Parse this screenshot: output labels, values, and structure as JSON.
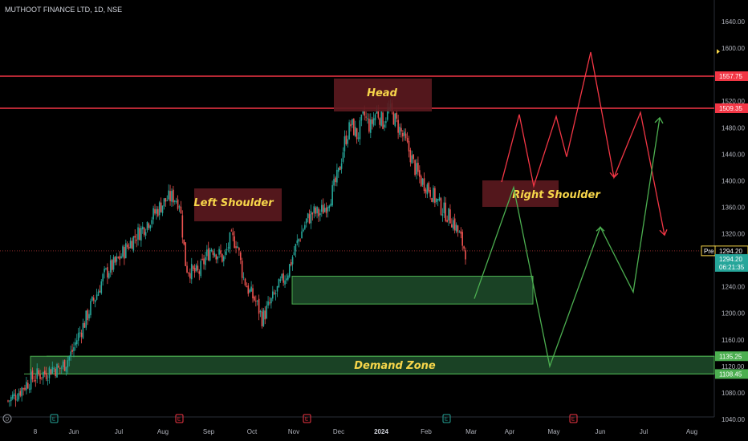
{
  "header": {
    "symbol_text": "MUTHOOT FINANCE LTD, 1D, NSE"
  },
  "colors": {
    "background": "#000000",
    "up_candle": "#26a69a",
    "down_candle": "#ef5350",
    "resistance_line": "#f23645",
    "zone_fill": "#1e4d2b",
    "zone_border": "#4caf50",
    "label_box": "#5c1a1f",
    "annotation_text": "#f7d64a",
    "projection_red": "#f23645",
    "projection_green": "#4caf50"
  },
  "chart_data": {
    "type": "candlestick",
    "title": "MUTHOOT FINANCE LTD, 1D, NSE",
    "ylim": [
      1030,
      1660
    ],
    "y_ticks": [
      "1640.00",
      "1600.00",
      "1560.00",
      "1520.00",
      "1480.00",
      "1440.00",
      "1400.00",
      "1360.00",
      "1320.00",
      "1280.00",
      "1240.00",
      "1200.00",
      "1160.00",
      "1120.00",
      "1080.00",
      "1040.00"
    ],
    "x_ticks": [
      "8",
      "Jun",
      "Jul",
      "Aug",
      "Sep",
      "Oct",
      "Nov",
      "Dec",
      "2024",
      "Feb",
      "Mar",
      "Apr",
      "May",
      "Jun",
      "Jul",
      "Aug"
    ],
    "bold_x_tick": "2024",
    "price_tags": [
      {
        "label": "1557.75",
        "value": 1557.75,
        "color": "#f23645"
      },
      {
        "label": "1509.35",
        "value": 1509.35,
        "color": "#f23645"
      },
      {
        "label": "1294.20",
        "value": 1294.2,
        "color": "#f7d64a",
        "prefix": "Pre"
      },
      {
        "label": "1294.20",
        "value": 1282,
        "color": "#26a69a"
      },
      {
        "label": "06:21:35",
        "value": 1270,
        "color": "#26a69a"
      },
      {
        "label": "1135.25",
        "value": 1135.25,
        "color": "#4caf50"
      },
      {
        "label": "1108.45",
        "value": 1108.45,
        "color": "#4caf50"
      }
    ],
    "horizontal_lines": [
      {
        "value": 1557.75,
        "color": "#f23645"
      },
      {
        "value": 1509.35,
        "color": "#f23645"
      }
    ],
    "current_price_line": {
      "value": 1294.2,
      "color": "#8b2a2a"
    },
    "zones": [
      {
        "name": "Demand Zone",
        "from_x": "May-24",
        "to_x": "Aug-24",
        "low": 1108.45,
        "high": 1135.25
      },
      {
        "name": "",
        "from_x": "Nov-23",
        "to_x": "Apr-24",
        "low": 1214,
        "high": 1256
      }
    ],
    "annotations": [
      {
        "text": "Left Shoulder",
        "value": 1372
      },
      {
        "text": "Head",
        "value": 1530
      },
      {
        "text": "Right Shoulder",
        "value": 1380
      },
      {
        "text": "Demand Zone",
        "value": 1121
      }
    ],
    "projection_red": [
      [
        1398,
        1398
      ],
      [
        1500,
        1500
      ],
      [
        1392,
        1392
      ],
      [
        1497,
        1497
      ],
      [
        1436,
        1436
      ],
      [
        1594,
        1594
      ],
      [
        1405,
        1405
      ],
      [
        1503,
        1503
      ],
      [
        1318,
        1318
      ]
    ],
    "projection_green": [
      [
        1222,
        1222
      ],
      [
        1390,
        1390
      ],
      [
        1120,
        1120
      ],
      [
        1330,
        1330
      ],
      [
        1232,
        1232
      ],
      [
        1495,
        1495
      ]
    ],
    "price_path": [
      1068,
      1075,
      1085,
      1095,
      1103,
      1108,
      1110,
      1118,
      1115,
      1125,
      1140,
      1165,
      1185,
      1210,
      1230,
      1255,
      1268,
      1276,
      1290,
      1304,
      1316,
      1326,
      1338,
      1350,
      1362,
      1372,
      1376,
      1368,
      1270,
      1262,
      1260,
      1282,
      1300,
      1290,
      1282,
      1312,
      1308,
      1255,
      1232,
      1218,
      1192,
      1210,
      1228,
      1246,
      1262,
      1292,
      1318,
      1340,
      1352,
      1350,
      1362,
      1382,
      1410,
      1460,
      1486,
      1466,
      1500,
      1480,
      1506,
      1488,
      1508,
      1490,
      1470,
      1448,
      1420,
      1400,
      1392,
      1376,
      1362,
      1350,
      1340,
      1318,
      1294
    ]
  },
  "event_markers": [
    {
      "label": "D",
      "color": "#9598a1"
    },
    {
      "label": "E",
      "color": "#26a69a"
    },
    {
      "label": "E",
      "color": "#f23645"
    },
    {
      "label": "E",
      "color": "#f23645"
    },
    {
      "label": "E",
      "color": "#26a69a"
    },
    {
      "label": "E",
      "color": "#f23645"
    }
  ]
}
